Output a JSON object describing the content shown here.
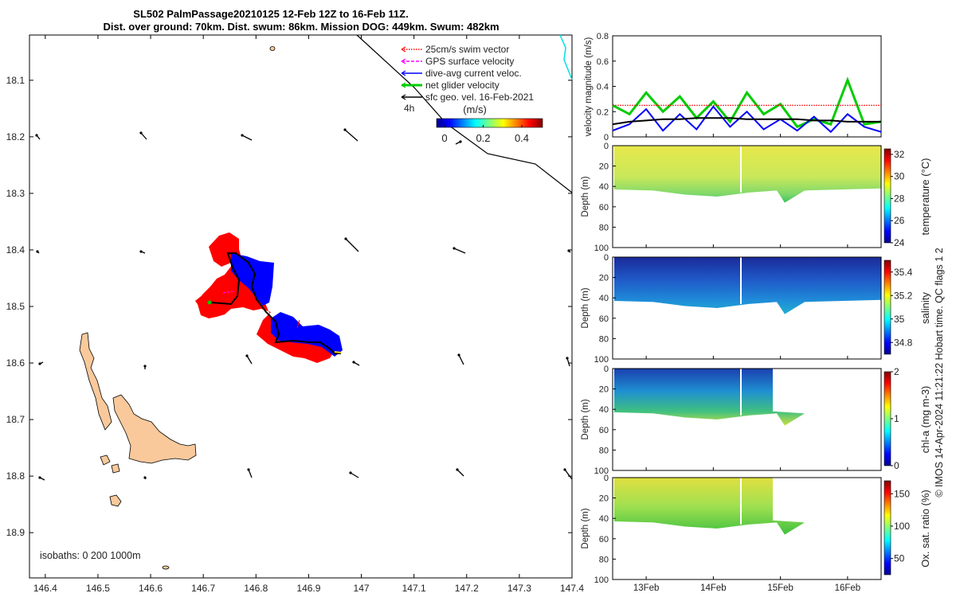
{
  "title": {
    "line1": "SL502 PalmPassage20210125 12-Feb 12Z to 16-Feb 11Z.",
    "line2": "Dist. over ground: 70km. Dist. swum: 86km. Mission DOG: 449km. Swum: 482km"
  },
  "credit": "© IMOS 14-Apr-2024 11:21:22 Hobart time. QC flags 1  2",
  "map": {
    "x_ticks": [
      "146.4",
      "146.5",
      "146.6",
      "146.7",
      "146.8",
      "146.9",
      "147",
      "147.1",
      "147.2",
      "147.3",
      "147.4"
    ],
    "y_ticks": [
      "18.1",
      "18.2",
      "18.3",
      "18.4",
      "18.5",
      "18.6",
      "18.7",
      "18.8",
      "18.9"
    ],
    "xlim": [
      146.37,
      147.4
    ],
    "ylim": [
      18.02,
      18.98
    ],
    "isobath_label": "isobaths: 0   200  1000m",
    "legend": [
      {
        "label": "25cm/s swim vector",
        "color": "#ff0000",
        "style": "dotted"
      },
      {
        "label": "GPS surface velocity",
        "color": "#ff00ff",
        "style": "dashed"
      },
      {
        "label": "dive-avg current veloc.",
        "color": "#0000ff",
        "style": "solid"
      },
      {
        "label": "net glider velocity",
        "color": "#00cc00",
        "style": "thick"
      },
      {
        "label": "sfc geo. vel. 16-Feb-2021",
        "color": "#000000",
        "style": "solid"
      }
    ],
    "interval_label": "4h",
    "colorbar": {
      "unit": "(m/s)",
      "ticks": [
        "0",
        "0.2",
        "0.4"
      ]
    },
    "colors": {
      "land": "#f9c99b",
      "swim": "#ff0000",
      "current": "#0000ff",
      "track": "#000000"
    }
  },
  "velocity_panel": {
    "ylabel": "velocity magnitude (m/s)",
    "y_ticks": [
      "0",
      "0.2",
      "0.4",
      "0.6",
      "0.8"
    ],
    "ylim": [
      0,
      0.8
    ]
  },
  "section_panels": [
    {
      "id": "temperature",
      "cbar_label": "temperature (°C)",
      "cbar_ticks": [
        "24",
        "26",
        "28",
        "30",
        "32"
      ]
    },
    {
      "id": "salinity",
      "cbar_label": "salinity",
      "cbar_ticks": [
        "34.8",
        "35",
        "35.2",
        "35.4"
      ]
    },
    {
      "id": "chla",
      "cbar_label": "chl-a (mg m-3)",
      "cbar_ticks": [
        "0",
        "1",
        "2"
      ]
    },
    {
      "id": "oxygen",
      "cbar_label": "Ox. sat. ratio (%)",
      "cbar_ticks": [
        "50",
        "100",
        "150"
      ]
    }
  ],
  "depth_axis": {
    "ylabel": "Depth (m)",
    "ticks": [
      "0",
      "20",
      "40",
      "60",
      "80",
      "100"
    ]
  },
  "time_axis": {
    "ticks": [
      "13Feb",
      "14Feb",
      "15Feb",
      "16Feb"
    ]
  },
  "chart_data": [
    {
      "type": "scatter",
      "title": "SL502 PalmPassage20210125 12-Feb 12Z to 16-Feb 11Z.",
      "xlabel": "",
      "ylabel": "",
      "xlim": [
        146.37,
        147.4
      ],
      "ylim": [
        18.02,
        18.98
      ],
      "series": [
        {
          "name": "track",
          "x": [
            146.7,
            146.73,
            146.75,
            146.78,
            146.8,
            146.79,
            146.82,
            146.85,
            146.86,
            146.9,
            146.93,
            146.96
          ],
          "y": [
            18.49,
            18.49,
            18.4,
            18.42,
            18.46,
            18.52,
            18.54,
            18.54,
            18.56,
            18.56,
            18.57,
            18.58
          ]
        }
      ]
    },
    {
      "type": "line",
      "xlabel": "",
      "ylabel": "velocity magnitude (m/s)",
      "ylim": [
        0,
        0.8
      ],
      "x": [
        12.5,
        12.75,
        13.0,
        13.25,
        13.5,
        13.75,
        14.0,
        14.25,
        14.5,
        14.75,
        15.0,
        15.25,
        15.5,
        15.75,
        16.0,
        16.25,
        16.5
      ],
      "series": [
        {
          "color": "#00cc00",
          "values": [
            0.25,
            0.18,
            0.35,
            0.2,
            0.32,
            0.15,
            0.28,
            0.12,
            0.35,
            0.18,
            0.26,
            0.08,
            0.14,
            0.1,
            0.45,
            0.1,
            0.12
          ]
        },
        {
          "color": "#0000ff",
          "values": [
            0.05,
            0.1,
            0.22,
            0.05,
            0.18,
            0.06,
            0.24,
            0.08,
            0.2,
            0.06,
            0.14,
            0.05,
            0.16,
            0.04,
            0.18,
            0.08,
            0.04
          ]
        },
        {
          "color": "#000000",
          "values": [
            0.1,
            0.12,
            0.13,
            0.14,
            0.14,
            0.15,
            0.15,
            0.15,
            0.14,
            0.14,
            0.14,
            0.14,
            0.13,
            0.13,
            0.12,
            0.12,
            0.12
          ]
        },
        {
          "color": "#ff0000",
          "values": [
            0.25,
            0.25,
            0.25,
            0.25,
            0.25,
            0.25,
            0.25,
            0.25,
            0.25,
            0.25,
            0.25,
            0.25,
            0.25,
            0.25,
            0.25,
            0.25,
            0.25
          ]
        }
      ]
    },
    {
      "type": "heatmap",
      "ylabel": "Depth (m)",
      "ylim": [
        0,
        100
      ],
      "x": [
        "13Feb",
        "14Feb",
        "15Feb",
        "16Feb"
      ],
      "colorbar_label": "temperature (°C)"
    },
    {
      "type": "heatmap",
      "ylabel": "Depth (m)",
      "ylim": [
        0,
        100
      ],
      "x": [
        "13Feb",
        "14Feb",
        "15Feb",
        "16Feb"
      ],
      "colorbar_label": "salinity"
    },
    {
      "type": "heatmap",
      "ylabel": "Depth (m)",
      "ylim": [
        0,
        100
      ],
      "x": [
        "13Feb",
        "14Feb",
        "15Feb",
        "16Feb"
      ],
      "colorbar_label": "chl-a (mg m-3)"
    },
    {
      "type": "heatmap",
      "ylabel": "Depth (m)",
      "ylim": [
        0,
        100
      ],
      "x": [
        "13Feb",
        "14Feb",
        "15Feb",
        "16Feb"
      ],
      "colorbar_label": "Ox. sat. ratio (%)"
    }
  ]
}
